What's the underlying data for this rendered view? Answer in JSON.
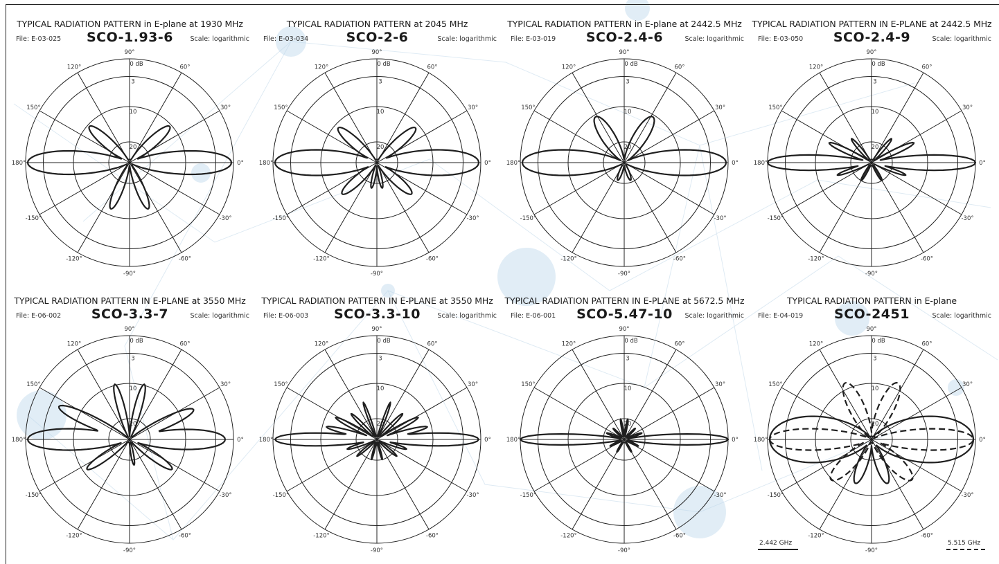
{
  "axis_labels": {
    "angles": [
      "0°",
      "30°",
      "60°",
      "90°",
      "120°",
      "150°",
      "180°",
      "-150°",
      "-120°",
      "-90°",
      "-60°",
      "-30°"
    ],
    "rings": [
      "0 dB",
      "3",
      "10",
      "20"
    ]
  },
  "chart_data": [
    {
      "type": "polar",
      "title": "TYPICAL RADIATION PATTERN in E-plane at 1930 MHz",
      "model": "SCO-1.93-6",
      "file": "File: E-03-025",
      "scale": "Scale: logarithmic",
      "scale_type": "logarithmic",
      "r_ticks_db": [
        0,
        3,
        10,
        20
      ],
      "angle_ticks_deg": [
        0,
        30,
        60,
        90,
        120,
        150,
        180,
        -150,
        -120,
        -90,
        -60,
        -30
      ],
      "series": [
        {
          "style": "solid",
          "lobes": [
            {
              "angle": 0,
              "level": 0.98,
              "width": 11
            },
            {
              "angle": 180,
              "level": 0.98,
              "width": 11
            },
            {
              "angle": 42,
              "level": 0.52,
              "width": 9
            },
            {
              "angle": 138,
              "level": 0.52,
              "width": 9
            },
            {
              "angle": -68,
              "level": 0.48,
              "width": 8
            },
            {
              "angle": -112,
              "level": 0.48,
              "width": 8
            }
          ]
        }
      ]
    },
    {
      "type": "polar",
      "title": "TYPICAL RADIATION PATTERN at 2045 MHz",
      "model": "SCO-2-6",
      "file": "File: E-03-034",
      "scale": "Scale: logarithmic",
      "scale_type": "logarithmic",
      "r_ticks_db": [
        0,
        3,
        10,
        20
      ],
      "angle_ticks_deg": [
        0,
        30,
        60,
        90,
        120,
        150,
        180,
        -150,
        -120,
        -90,
        -60,
        -30
      ],
      "series": [
        {
          "style": "solid",
          "lobes": [
            {
              "angle": 0,
              "level": 0.98,
              "width": 12
            },
            {
              "angle": 180,
              "level": 0.98,
              "width": 12
            },
            {
              "angle": 42,
              "level": 0.5,
              "width": 9
            },
            {
              "angle": 138,
              "level": 0.5,
              "width": 9
            },
            {
              "angle": -42,
              "level": 0.45,
              "width": 9
            },
            {
              "angle": -138,
              "level": 0.45,
              "width": 9
            },
            {
              "angle": -78,
              "level": 0.25,
              "width": 6
            },
            {
              "angle": -102,
              "level": 0.25,
              "width": 6
            }
          ]
        }
      ]
    },
    {
      "type": "polar",
      "title": "TYPICAL RADIATION PATTERN in E-plane at 2442.5 MHz",
      "model": "SCO-2.4-6",
      "file": "File: E-03-019",
      "scale": "Scale: logarithmic",
      "scale_type": "logarithmic",
      "r_ticks_db": [
        0,
        3,
        10,
        20
      ],
      "angle_ticks_deg": [
        0,
        30,
        60,
        90,
        120,
        150,
        180,
        -150,
        -120,
        -90,
        -60,
        -30
      ],
      "series": [
        {
          "style": "solid",
          "lobes": [
            {
              "angle": 0,
              "level": 0.98,
              "width": 12
            },
            {
              "angle": 180,
              "level": 0.98,
              "width": 12
            },
            {
              "angle": 58,
              "level": 0.52,
              "width": 12
            },
            {
              "angle": 122,
              "level": 0.52,
              "width": 12
            },
            {
              "angle": -70,
              "level": 0.18,
              "width": 8
            },
            {
              "angle": -110,
              "level": 0.18,
              "width": 8
            }
          ]
        }
      ]
    },
    {
      "type": "polar",
      "title": "TYPICAL RADIATION PATTERN IN E-PLANE at 2442.5 MHz",
      "model": "SCO-2.4-9",
      "file": "File: E-03-050",
      "scale": "Scale: logarithmic",
      "scale_type": "logarithmic",
      "r_ticks_db": [
        0,
        3,
        10,
        20
      ],
      "angle_ticks_deg": [
        0,
        30,
        60,
        90,
        120,
        150,
        180,
        -150,
        -120,
        -90,
        -60,
        -30
      ],
      "series": [
        {
          "style": "solid",
          "lobes": [
            {
              "angle": 0,
              "level": 1.0,
              "width": 7
            },
            {
              "angle": 180,
              "level": 1.0,
              "width": 7
            },
            {
              "angle": 25,
              "level": 0.45,
              "width": 5
            },
            {
              "angle": 155,
              "level": 0.45,
              "width": 5
            },
            {
              "angle": 50,
              "level": 0.3,
              "width": 5
            },
            {
              "angle": 130,
              "level": 0.3,
              "width": 5
            },
            {
              "angle": -20,
              "level": 0.35,
              "width": 4
            },
            {
              "angle": -160,
              "level": 0.35,
              "width": 4
            },
            {
              "angle": -60,
              "level": 0.2,
              "width": 5
            },
            {
              "angle": -120,
              "level": 0.2,
              "width": 5
            }
          ]
        }
      ]
    },
    {
      "type": "polar",
      "title": "TYPICAL RADIATION PATTERN IN E-PLANE at 3550 MHz",
      "model": "SCO-3.3-7",
      "file": "File: E-06-002",
      "scale": "Scale: logarithmic",
      "scale_type": "logarithmic",
      "r_ticks_db": [
        0,
        3,
        10,
        20
      ],
      "angle_ticks_deg": [
        0,
        30,
        60,
        90,
        120,
        150,
        180,
        -150,
        -120,
        -90,
        -60,
        -30
      ],
      "series": [
        {
          "style": "solid",
          "lobes": [
            {
              "angle": 0,
              "level": 0.92,
              "width": 10
            },
            {
              "angle": 180,
              "level": 0.98,
              "width": 10
            },
            {
              "angle": 25,
              "level": 0.68,
              "width": 7
            },
            {
              "angle": 155,
              "level": 0.75,
              "width": 7
            },
            {
              "angle": 75,
              "level": 0.55,
              "width": 6
            },
            {
              "angle": 105,
              "level": 0.55,
              "width": 6
            },
            {
              "angle": -35,
              "level": 0.5,
              "width": 7
            },
            {
              "angle": -145,
              "level": 0.5,
              "width": 7
            },
            {
              "angle": -80,
              "level": 0.25,
              "width": 5
            }
          ]
        }
      ]
    },
    {
      "type": "polar",
      "title": "TYPICAL RADIATION PATTERN IN E-PLANE at 3550 MHz",
      "model": "SCO-3.3-10",
      "file": "File: E-06-003",
      "scale": "Scale: logarithmic",
      "scale_type": "logarithmic",
      "r_ticks_db": [
        0,
        3,
        10,
        20
      ],
      "angle_ticks_deg": [
        0,
        30,
        60,
        90,
        120,
        150,
        180,
        -150,
        -120,
        -90,
        -60,
        -30
      ],
      "series": [
        {
          "style": "solid",
          "lobes": [
            {
              "angle": 0,
              "level": 0.98,
              "width": 6
            },
            {
              "angle": 180,
              "level": 0.98,
              "width": 6
            },
            {
              "angle": 14,
              "level": 0.5,
              "width": 4
            },
            {
              "angle": 166,
              "level": 0.5,
              "width": 4
            },
            {
              "angle": 28,
              "level": 0.45,
              "width": 4
            },
            {
              "angle": 152,
              "level": 0.45,
              "width": 4
            },
            {
              "angle": 45,
              "level": 0.35,
              "width": 4
            },
            {
              "angle": 135,
              "level": 0.35,
              "width": 4
            },
            {
              "angle": 70,
              "level": 0.38,
              "width": 3
            },
            {
              "angle": 110,
              "level": 0.38,
              "width": 3
            },
            {
              "angle": -18,
              "level": 0.3,
              "width": 4
            },
            {
              "angle": -162,
              "level": 0.3,
              "width": 4
            },
            {
              "angle": -40,
              "level": 0.25,
              "width": 4
            },
            {
              "angle": -140,
              "level": 0.25,
              "width": 4
            },
            {
              "angle": -75,
              "level": 0.2,
              "width": 3
            },
            {
              "angle": -105,
              "level": 0.2,
              "width": 3
            }
          ]
        }
      ]
    },
    {
      "type": "polar",
      "title": "TYPICAL RADIATION PATTERN IN E-PLANE at 5672.5 MHz",
      "model": "SCO-5.47-10",
      "file": "File: E-06-001",
      "scale": "Scale: logarithmic",
      "scale_type": "logarithmic",
      "r_ticks_db": [
        0,
        3,
        10,
        20
      ],
      "angle_ticks_deg": [
        0,
        30,
        60,
        90,
        120,
        150,
        180,
        -150,
        -120,
        -90,
        -60,
        -30
      ],
      "series": [
        {
          "style": "solid",
          "lobes": [
            {
              "angle": 0,
              "level": 1.0,
              "width": 5
            },
            {
              "angle": 180,
              "level": 1.0,
              "width": 5
            },
            {
              "angle": 20,
              "level": 0.18,
              "width": 4
            },
            {
              "angle": 160,
              "level": 0.18,
              "width": 4
            },
            {
              "angle": 45,
              "level": 0.15,
              "width": 4
            },
            {
              "angle": 135,
              "level": 0.15,
              "width": 4
            },
            {
              "angle": 80,
              "level": 0.2,
              "width": 3
            },
            {
              "angle": 100,
              "level": 0.2,
              "width": 3
            },
            {
              "angle": -25,
              "level": 0.15,
              "width": 4
            },
            {
              "angle": -155,
              "level": 0.15,
              "width": 4
            },
            {
              "angle": -60,
              "level": 0.14,
              "width": 4
            },
            {
              "angle": -120,
              "level": 0.14,
              "width": 4
            }
          ]
        }
      ]
    },
    {
      "type": "polar",
      "title": "TYPICAL RADIATION PATTERN in E-plane",
      "model": "SCO-2451",
      "file": "File: E-04-019",
      "scale": "Scale: logarithmic",
      "scale_type": "logarithmic",
      "r_ticks_db": [
        0,
        3,
        10,
        20
      ],
      "angle_ticks_deg": [
        0,
        30,
        60,
        90,
        120,
        150,
        180,
        -150,
        -120,
        -90,
        -60,
        -30
      ],
      "series": [
        {
          "name": "2.442 GHz",
          "style": "solid",
          "lobes": [
            {
              "angle": 0,
              "level": 0.98,
              "width": 22
            },
            {
              "angle": 180,
              "level": 0.98,
              "width": 22
            },
            {
              "angle": -70,
              "level": 0.45,
              "width": 10
            },
            {
              "angle": -110,
              "level": 0.45,
              "width": 10
            }
          ]
        },
        {
          "name": "5.515 GHz",
          "style": "dashed",
          "lobes": [
            {
              "angle": 0,
              "level": 0.98,
              "width": 10
            },
            {
              "angle": 180,
              "level": 0.98,
              "width": 10
            },
            {
              "angle": 65,
              "level": 0.6,
              "width": 12
            },
            {
              "angle": 115,
              "level": 0.6,
              "width": 12
            },
            {
              "angle": -45,
              "level": 0.55,
              "width": 12
            },
            {
              "angle": -135,
              "level": 0.55,
              "width": 12
            }
          ]
        }
      ]
    }
  ]
}
